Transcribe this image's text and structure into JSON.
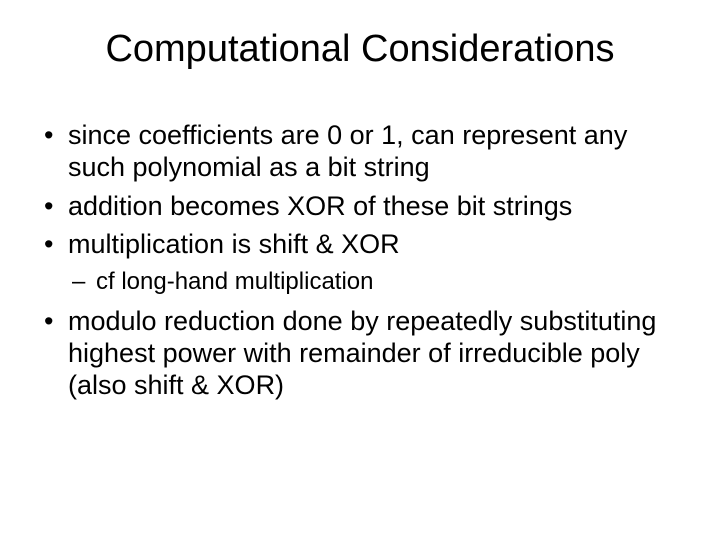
{
  "slide": {
    "title": "Computational Considerations",
    "bullets": [
      {
        "text": "since coefficients are 0 or 1, can represent any such polynomial as a bit string"
      },
      {
        "text": "addition becomes XOR of these bit strings"
      },
      {
        "text": "multiplication is shift & XOR"
      },
      {
        "text": "modulo reduction done by repeatedly substituting highest power with remainder of irreducible poly (also shift & XOR)"
      }
    ],
    "subbullet_after_index": 2,
    "subbullets": [
      {
        "text": "cf long-hand multiplication"
      }
    ],
    "colors": {
      "background": "#ffffff",
      "text": "#000000"
    },
    "typography": {
      "title_fontsize": 38,
      "bullet_fontsize": 27,
      "subbullet_fontsize": 24,
      "font_family": "Arial"
    }
  }
}
